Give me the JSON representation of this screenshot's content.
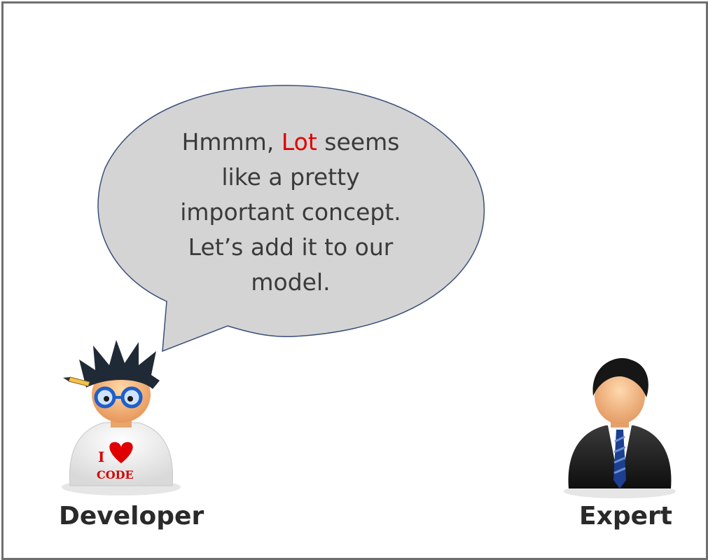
{
  "speech": {
    "line1_pre": "Hmmm,",
    "highlight": "Lot",
    "line1_post": "seems",
    "line2": "like a pretty",
    "line3": "important concept.",
    "line4": "Let’s add it to our",
    "line5": "model."
  },
  "developer": {
    "shirt_line1": "I",
    "shirt_line2": "CODE",
    "label": "Developer"
  },
  "expert": {
    "label": "Expert"
  },
  "colors": {
    "bubble_fill": "#d4d4d4",
    "bubble_stroke": "#3b4f7a",
    "highlight": "#e00000",
    "border": "#6f6f6f"
  }
}
